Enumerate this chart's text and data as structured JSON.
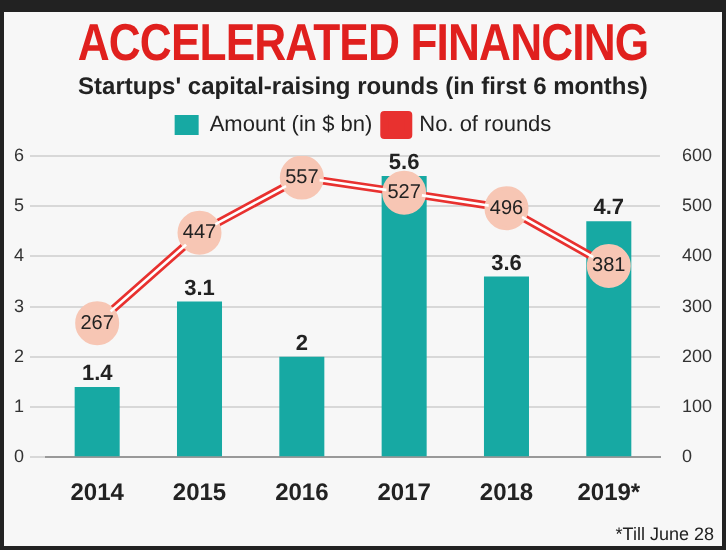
{
  "chart_data": {
    "type": "bar",
    "title": "ACCELERATED FINANCING",
    "subtitle": "Startups' capital-raising rounds (in first 6 months)",
    "categories": [
      "2014",
      "2015",
      "2016",
      "2017",
      "2018",
      "2019*"
    ],
    "series": [
      {
        "name": "Amount (in $ bn)",
        "color": "#17a9a3",
        "values": [
          1.4,
          3.1,
          2,
          5.6,
          3.6,
          4.7
        ]
      },
      {
        "name": "No. of rounds",
        "type": "line",
        "axis": "y2",
        "color": "#e8312f",
        "values": [
          267,
          447,
          557,
          527,
          496,
          381
        ]
      }
    ],
    "ylim": [
      0,
      6
    ],
    "yticks": [
      0,
      1,
      2,
      3,
      4,
      5,
      6
    ],
    "y2lim": [
      0,
      600
    ],
    "y2ticks": [
      0,
      100,
      200,
      300,
      400,
      500,
      600
    ],
    "grid": "y",
    "legend": "top",
    "marker": "circle",
    "data_labels": true,
    "annotations": [
      "*Till June 28"
    ]
  }
}
